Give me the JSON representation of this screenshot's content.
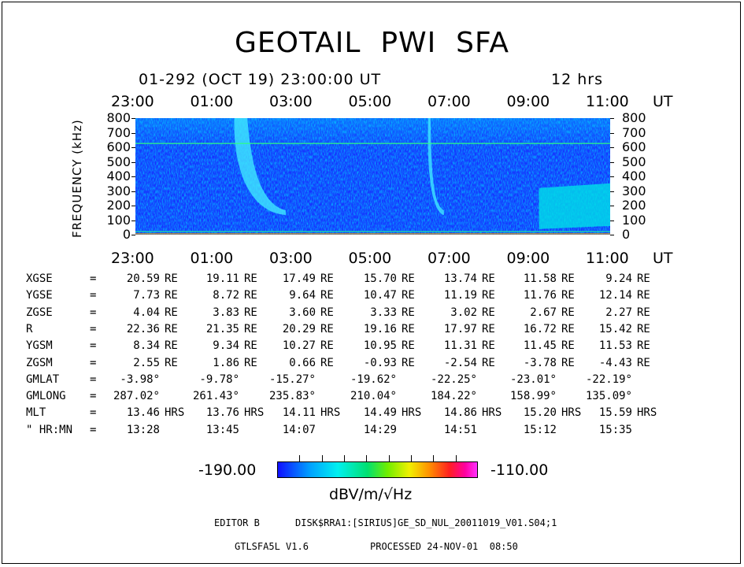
{
  "title": "GEOTAIL  PWI  SFA",
  "subtitle_left": "01-292 (OCT 19) 23:00:00 UT",
  "subtitle_right": "12 hrs",
  "chart_data": {
    "type": "heatmap",
    "title": "GEOTAIL  PWI  SFA",
    "xlabel": "UT",
    "ylabel": "FREQUENCY (kHz)",
    "x_ticks": [
      "23:00",
      "01:00",
      "03:00",
      "05:00",
      "07:00",
      "09:00",
      "11:00"
    ],
    "y_ticks": [
      800,
      700,
      600,
      500,
      400,
      300,
      200,
      100,
      0
    ],
    "ylim": [
      0,
      800
    ],
    "colorbar": {
      "min_label": "-190.00",
      "max_label": "-110.00",
      "unit": "dBV/m/√Hz",
      "min": -190,
      "max": -110
    },
    "colors": {
      "background": "#1a3fff",
      "low": "#1010ff",
      "mid": "#00d8ff",
      "high": "#ff30ff"
    },
    "emission_features": [
      {
        "t_start": 2.5,
        "t_end": 3.6,
        "f_top": 800,
        "f_bottom": 200
      },
      {
        "t_start": 7.4,
        "t_end": 7.6,
        "f_top": 800,
        "f_bottom": 200
      },
      {
        "t_start": 10.2,
        "t_end": 12.0,
        "f_top": 320,
        "f_bottom": 60
      }
    ]
  },
  "ut_label": "UT",
  "orbit": {
    "rows": [
      {
        "label": "XGSE",
        "eq": "=",
        "values": [
          "20.59",
          "19.11",
          "17.49",
          "15.70",
          "13.74",
          "11.58",
          "9.24"
        ],
        "unit": "RE"
      },
      {
        "label": "YGSE",
        "eq": "=",
        "values": [
          "7.73",
          "8.72",
          "9.64",
          "10.47",
          "11.19",
          "11.76",
          "12.14"
        ],
        "unit": "RE"
      },
      {
        "label": "ZGSE",
        "eq": "=",
        "values": [
          "4.04",
          "3.83",
          "3.60",
          "3.33",
          "3.02",
          "2.67",
          "2.27"
        ],
        "unit": "RE"
      },
      {
        "label": "R",
        "eq": "=",
        "values": [
          "22.36",
          "21.35",
          "20.29",
          "19.16",
          "17.97",
          "16.72",
          "15.42"
        ],
        "unit": "RE"
      },
      {
        "label": "YGSM",
        "eq": "=",
        "values": [
          "8.34",
          "9.34",
          "10.27",
          "10.95",
          "11.31",
          "11.45",
          "11.53"
        ],
        "unit": "RE"
      },
      {
        "label": "ZGSM",
        "eq": "=",
        "values": [
          "2.55",
          "1.86",
          "0.66",
          "-0.93",
          "-2.54",
          "-3.78",
          "-4.43"
        ],
        "unit": "RE"
      },
      {
        "label": "GMLAT",
        "eq": "=",
        "values": [
          "-3.98°",
          "-9.78°",
          "-15.27°",
          "-19.62°",
          "-22.25°",
          "-23.01°",
          "-22.19°"
        ],
        "unit": ""
      },
      {
        "label": "GMLONG",
        "eq": "=",
        "values": [
          "287.02°",
          "261.43°",
          "235.83°",
          "210.04°",
          "184.22°",
          "158.99°",
          "135.09°"
        ],
        "unit": ""
      },
      {
        "label": "MLT",
        "eq": "=",
        "values": [
          "13.46",
          "13.76",
          "14.11",
          "14.49",
          "14.86",
          "15.20",
          "15.59"
        ],
        "unit": "HRS"
      },
      {
        "label": "\" HR:MN",
        "eq": "=",
        "values": [
          "13:28",
          "13:45",
          "14:07",
          "14:29",
          "14:51",
          "15:12",
          "15:35"
        ],
        "unit": ""
      }
    ]
  },
  "footer": {
    "editor": "EDITOR B",
    "file": "DISK$RRA1:[SIRIUS]GE_SD_NUL_20011019_V01.S04;1",
    "version": "GTLSFA5L V1.6",
    "processed": "PROCESSED 24-NOV-01  08:50"
  }
}
